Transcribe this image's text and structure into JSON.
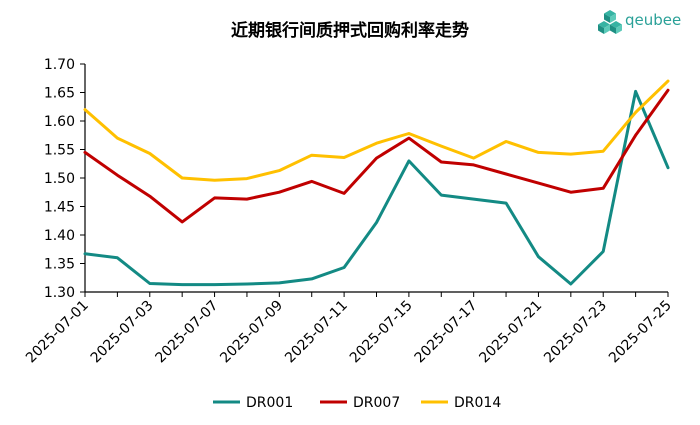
{
  "logo": {
    "text": "qeubee",
    "color": "#23a394"
  },
  "chart_data": {
    "type": "line",
    "title": "近期银行间质押式回购利率走势",
    "xlabel": "",
    "ylabel": "",
    "ylim": [
      1.3,
      1.7
    ],
    "yticks": [
      "1.30",
      "1.35",
      "1.40",
      "1.45",
      "1.50",
      "1.55",
      "1.60",
      "1.65",
      "1.70"
    ],
    "x": [
      "2025-07-01",
      "2025-07-02",
      "2025-07-03",
      "2025-07-04",
      "2025-07-07",
      "2025-07-08",
      "2025-07-09",
      "2025-07-10",
      "2025-07-11",
      "2025-07-14",
      "2025-07-15",
      "2025-07-16",
      "2025-07-17",
      "2025-07-18",
      "2025-07-21",
      "2025-07-22",
      "2025-07-23",
      "2025-07-24",
      "2025-07-25"
    ],
    "xticks": [
      "2025-07-01",
      "2025-07-03",
      "2025-07-07",
      "2025-07-09",
      "2025-07-11",
      "2025-07-15",
      "2025-07-17",
      "2025-07-21",
      "2025-07-23",
      "2025-07-25"
    ],
    "grid": false,
    "legend_position": "bottom",
    "series": [
      {
        "name": "DR001",
        "color": "#138a84",
        "values": [
          1.367,
          1.36,
          1.315,
          1.313,
          1.313,
          1.314,
          1.316,
          1.323,
          1.343,
          1.422,
          1.53,
          1.47,
          1.463,
          1.456,
          1.362,
          1.314,
          1.371,
          1.652,
          1.518
        ]
      },
      {
        "name": "DR007",
        "color": "#c00000",
        "values": [
          1.545,
          1.505,
          1.468,
          1.423,
          1.465,
          1.463,
          1.475,
          1.494,
          1.473,
          1.535,
          1.57,
          1.528,
          1.523,
          1.507,
          1.491,
          1.475,
          1.482,
          1.575,
          1.654
        ]
      },
      {
        "name": "DR014",
        "color": "#ffc000",
        "values": [
          1.62,
          1.57,
          1.543,
          1.5,
          1.496,
          1.499,
          1.513,
          1.54,
          1.536,
          1.561,
          1.578,
          1.556,
          1.535,
          1.564,
          1.545,
          1.542,
          1.547,
          1.615,
          1.67
        ]
      }
    ]
  }
}
